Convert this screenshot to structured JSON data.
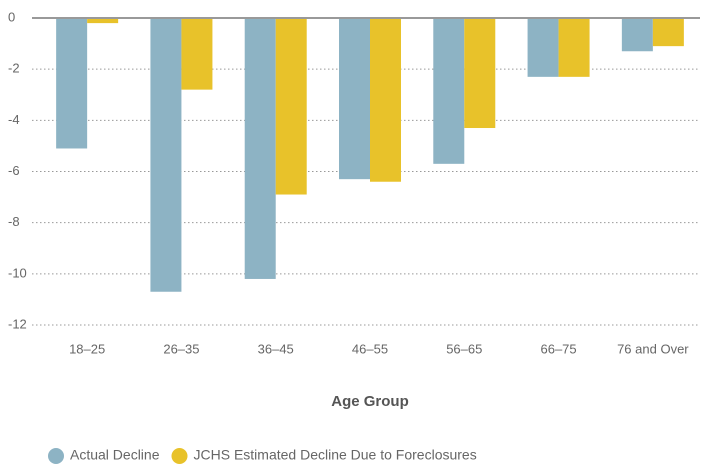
{
  "chart_data": {
    "type": "bar",
    "x_label": "Age Group",
    "categories": [
      "18–25",
      "26–35",
      "36–45",
      "46–55",
      "56–65",
      "66–75",
      "76 and Over"
    ],
    "series": [
      {
        "name": "Actual Decline",
        "color": "#8db3c4",
        "values": [
          -5.1,
          -10.7,
          -10.2,
          -6.3,
          -5.7,
          -2.3,
          -1.3
        ]
      },
      {
        "name": "JCHS Estimated Decline Due to Foreclosures",
        "color": "#e8c22a",
        "values": [
          -0.2,
          -2.8,
          -6.9,
          -6.4,
          -4.3,
          -2.3,
          -1.1
        ]
      }
    ],
    "ylim": [
      -12,
      0
    ],
    "yticks": [
      0,
      -2,
      -4,
      -6,
      -8,
      -10,
      -12
    ],
    "grid": true,
    "legend": "bottom"
  }
}
